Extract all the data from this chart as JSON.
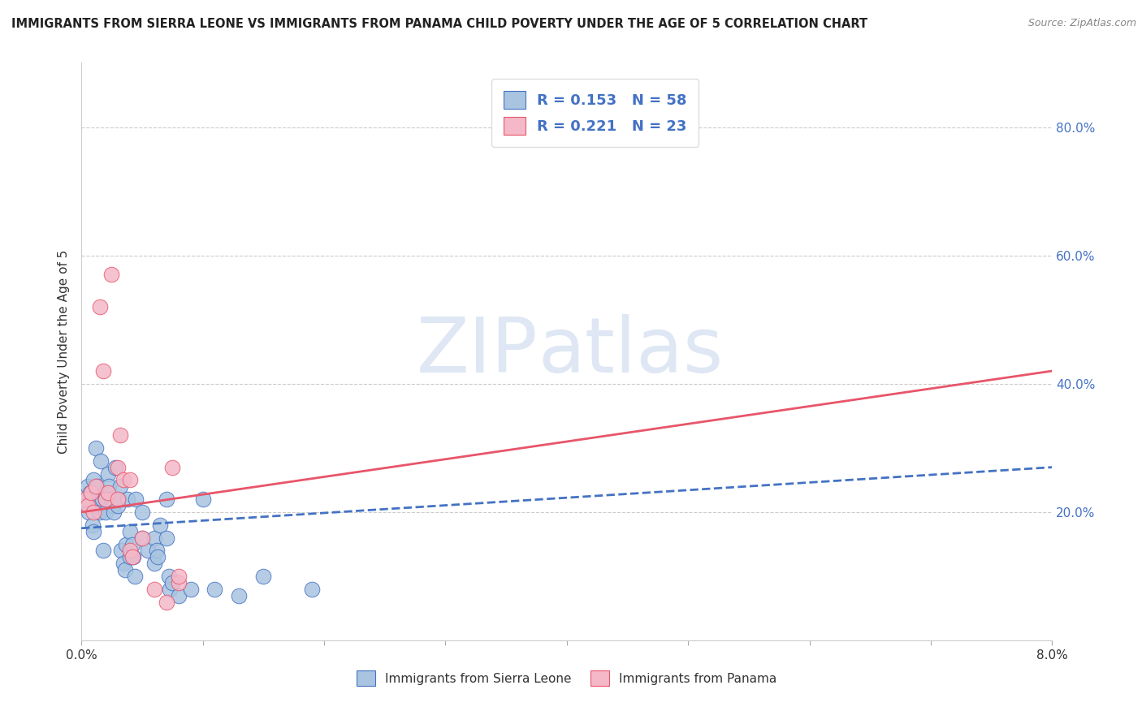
{
  "title": "IMMIGRANTS FROM SIERRA LEONE VS IMMIGRANTS FROM PANAMA CHILD POVERTY UNDER THE AGE OF 5 CORRELATION CHART",
  "source": "Source: ZipAtlas.com",
  "ylabel": "Child Poverty Under the Age of 5",
  "ylabel_right_ticks": [
    "20.0%",
    "40.0%",
    "60.0%",
    "80.0%"
  ],
  "ylabel_right_vals": [
    0.2,
    0.4,
    0.6,
    0.8
  ],
  "legend_label1": "Immigrants from Sierra Leone",
  "legend_label2": "Immigrants from Panama",
  "R1": 0.153,
  "N1": 58,
  "R2": 0.221,
  "N2": 23,
  "color1": "#a8c4e0",
  "color2": "#f4b8c8",
  "line1_color": "#4472c4",
  "line2_color": "#e8556a",
  "watermark_zip": "ZIP",
  "watermark_atlas": "atlas",
  "sierra_leone_x": [
    0.0003,
    0.0005,
    0.0006,
    0.0007,
    0.0008,
    0.0009,
    0.001,
    0.001,
    0.0012,
    0.0013,
    0.0014,
    0.0015,
    0.0016,
    0.0017,
    0.0018,
    0.0019,
    0.002,
    0.002,
    0.0022,
    0.0023,
    0.0025,
    0.0026,
    0.0027,
    0.0028,
    0.003,
    0.0031,
    0.0032,
    0.0033,
    0.0035,
    0.0036,
    0.0037,
    0.0038,
    0.004,
    0.004,
    0.0042,
    0.0043,
    0.0044,
    0.0045,
    0.005,
    0.005,
    0.0055,
    0.006,
    0.006,
    0.0062,
    0.0063,
    0.0065,
    0.007,
    0.007,
    0.0072,
    0.0073,
    0.0075,
    0.008,
    0.009,
    0.01,
    0.011,
    0.013,
    0.015,
    0.019
  ],
  "sierra_leone_y": [
    0.22,
    0.24,
    0.2,
    0.23,
    0.22,
    0.18,
    0.17,
    0.25,
    0.3,
    0.24,
    0.21,
    0.2,
    0.28,
    0.22,
    0.14,
    0.23,
    0.2,
    0.22,
    0.26,
    0.24,
    0.22,
    0.21,
    0.2,
    0.27,
    0.21,
    0.22,
    0.24,
    0.14,
    0.12,
    0.11,
    0.15,
    0.22,
    0.13,
    0.17,
    0.15,
    0.13,
    0.1,
    0.22,
    0.2,
    0.16,
    0.14,
    0.12,
    0.16,
    0.14,
    0.13,
    0.18,
    0.22,
    0.16,
    0.1,
    0.08,
    0.09,
    0.07,
    0.08,
    0.22,
    0.08,
    0.07,
    0.1,
    0.08
  ],
  "panama_x": [
    0.0003,
    0.0005,
    0.0008,
    0.001,
    0.0012,
    0.0015,
    0.0018,
    0.002,
    0.0022,
    0.0025,
    0.003,
    0.003,
    0.0032,
    0.0035,
    0.004,
    0.004,
    0.0042,
    0.005,
    0.006,
    0.007,
    0.0075,
    0.008,
    0.008
  ],
  "panama_y": [
    0.22,
    0.21,
    0.23,
    0.2,
    0.24,
    0.52,
    0.42,
    0.22,
    0.23,
    0.57,
    0.27,
    0.22,
    0.32,
    0.25,
    0.25,
    0.14,
    0.13,
    0.16,
    0.08,
    0.06,
    0.27,
    0.09,
    0.1
  ],
  "xlim": [
    0.0,
    0.08
  ],
  "ylim": [
    0.0,
    0.9
  ],
  "sl_line_x": [
    0.0,
    0.08
  ],
  "sl_line_y": [
    0.175,
    0.27
  ],
  "pan_line_x": [
    0.0,
    0.08
  ],
  "pan_line_y": [
    0.2,
    0.42
  ]
}
